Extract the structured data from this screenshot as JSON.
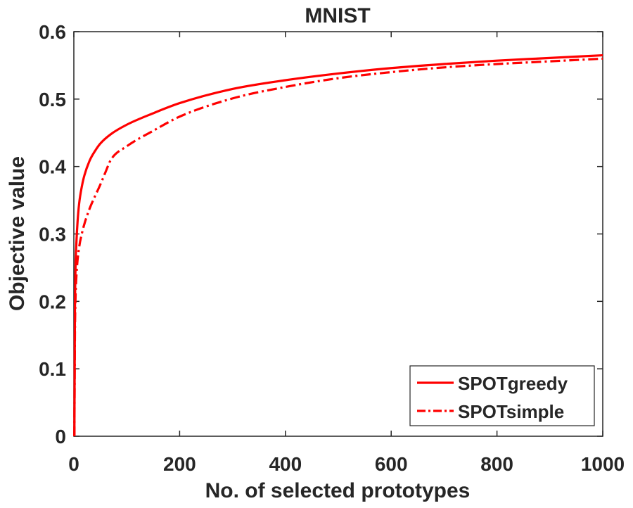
{
  "chart_data": {
    "type": "line",
    "title": "MNIST",
    "xlabel": "No. of selected prototypes",
    "ylabel": "Objective value",
    "xlim": [
      0,
      1000
    ],
    "ylim": [
      0,
      0.6
    ],
    "xticks": [
      0,
      200,
      400,
      600,
      800,
      1000
    ],
    "yticks": [
      0,
      0.1,
      0.2,
      0.3,
      0.4,
      0.5,
      0.6
    ],
    "xtick_labels": [
      "0",
      "200",
      "400",
      "600",
      "800",
      "1000"
    ],
    "ytick_labels": [
      "0",
      "0.1",
      "0.2",
      "0.3",
      "0.4",
      "0.5",
      "0.6"
    ],
    "grid": false,
    "legend_position": "bottom-right",
    "series": [
      {
        "name": "SPOTgreedy",
        "color": "#ff0000",
        "style": "solid",
        "x": [
          1,
          2,
          3,
          5,
          7,
          10,
          15,
          20,
          30,
          40,
          50,
          70,
          100,
          150,
          200,
          300,
          400,
          500,
          600,
          700,
          800,
          900,
          1000
        ],
        "y": [
          0.0,
          0.18,
          0.245,
          0.29,
          0.318,
          0.345,
          0.37,
          0.387,
          0.409,
          0.423,
          0.434,
          0.448,
          0.462,
          0.479,
          0.494,
          0.515,
          0.528,
          0.538,
          0.546,
          0.552,
          0.557,
          0.561,
          0.565
        ]
      },
      {
        "name": "SPOTsimple",
        "color": "#ff0000",
        "style": "dashdot",
        "x": [
          1,
          2,
          3,
          5,
          10,
          15,
          20,
          30,
          40,
          50,
          60,
          70,
          100,
          150,
          200,
          300,
          400,
          500,
          600,
          700,
          800,
          900,
          1000
        ],
        "y": [
          0.0,
          0.15,
          0.2,
          0.24,
          0.28,
          0.3,
          0.315,
          0.338,
          0.356,
          0.373,
          0.392,
          0.41,
          0.43,
          0.453,
          0.474,
          0.501,
          0.518,
          0.531,
          0.54,
          0.547,
          0.552,
          0.556,
          0.56
        ]
      }
    ]
  }
}
